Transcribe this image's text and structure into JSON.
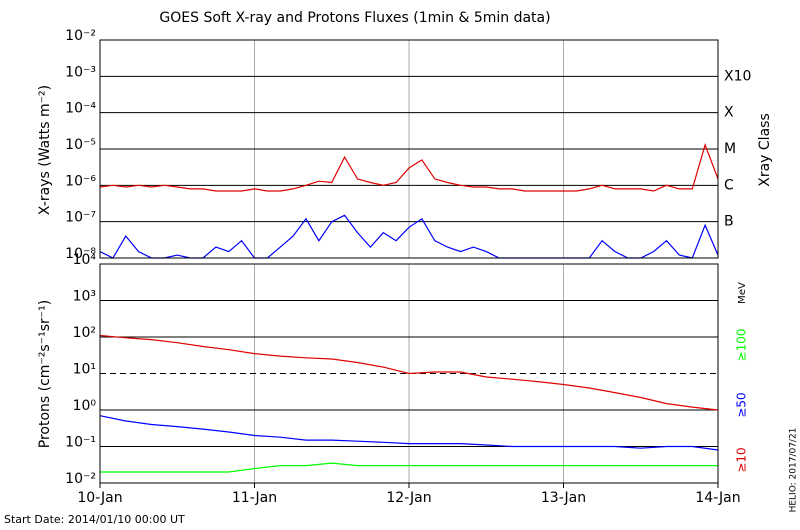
{
  "chart_data": [
    {
      "type": "line",
      "title": "GOES Soft X-ray and Protons Fluxes   (1min & 5min data)",
      "ylabel": "X-rays (Watts m⁻²)",
      "right_label": "Xray Class",
      "log_scale": true,
      "grid": true,
      "xlim": [
        0,
        96
      ],
      "ylim": [
        1e-08,
        0.01
      ],
      "yticks": [
        {
          "value": 1e-08,
          "label": "10⁻⁸"
        },
        {
          "value": 1e-07,
          "label": "10⁻⁷"
        },
        {
          "value": 1e-06,
          "label": "10⁻⁶"
        },
        {
          "value": 1e-05,
          "label": "10⁻⁵"
        },
        {
          "value": 0.0001,
          "label": "10⁻⁴"
        },
        {
          "value": 0.001,
          "label": "10⁻³"
        },
        {
          "value": 0.01,
          "label": "10⁻²"
        }
      ],
      "class_ticks": [
        {
          "value": 1e-07,
          "label": "B"
        },
        {
          "value": 1e-06,
          "label": "C"
        },
        {
          "value": 1e-05,
          "label": "M"
        },
        {
          "value": 0.0001,
          "label": "X"
        },
        {
          "value": 0.001,
          "label": "X10"
        }
      ],
      "x": [
        0,
        2,
        4,
        6,
        8,
        10,
        12,
        14,
        16,
        18,
        20,
        22,
        24,
        26,
        28,
        30,
        32,
        34,
        36,
        38,
        40,
        42,
        44,
        46,
        48,
        50,
        52,
        54,
        56,
        58,
        60,
        62,
        64,
        66,
        68,
        70,
        72,
        74,
        76,
        78,
        80,
        82,
        84,
        86,
        88,
        90,
        92,
        94,
        96
      ],
      "series": [
        {
          "color": "#e00000",
          "values": [
            9e-07,
            1e-06,
            9e-07,
            1e-06,
            9e-07,
            1e-06,
            9e-07,
            8e-07,
            8e-07,
            7e-07,
            7e-07,
            7e-07,
            8e-07,
            7e-07,
            7e-07,
            8e-07,
            1e-06,
            1.3e-06,
            1.2e-06,
            6e-06,
            1.5e-06,
            1.2e-06,
            1e-06,
            1.2e-06,
            3e-06,
            5e-06,
            1.5e-06,
            1.2e-06,
            1e-06,
            9e-07,
            9e-07,
            8e-07,
            8e-07,
            7e-07,
            7e-07,
            7e-07,
            7e-07,
            7e-07,
            8e-07,
            1e-06,
            8e-07,
            8e-07,
            8e-07,
            7e-07,
            1e-06,
            8e-07,
            8e-07,
            1.3e-05,
            1.5e-06
          ]
        },
        {
          "color": "#0000ff",
          "values": [
            1.5e-08,
            1e-08,
            4e-08,
            1.5e-08,
            1e-08,
            1e-08,
            1.2e-08,
            1e-08,
            1e-08,
            2e-08,
            1.5e-08,
            3e-08,
            1e-08,
            1e-08,
            2e-08,
            4e-08,
            1.2e-07,
            3e-08,
            1e-07,
            1.5e-07,
            5e-08,
            2e-08,
            5e-08,
            3e-08,
            7e-08,
            1.2e-07,
            3e-08,
            2e-08,
            1.5e-08,
            2e-08,
            1.5e-08,
            1e-08,
            1e-08,
            1e-08,
            1e-08,
            1e-08,
            1e-08,
            1e-08,
            1e-08,
            3e-08,
            1.5e-08,
            1e-08,
            1e-08,
            1.5e-08,
            3e-08,
            1.2e-08,
            1e-08,
            8e-08,
            1.2e-08
          ]
        }
      ]
    },
    {
      "type": "line",
      "ylabel": "Protons (cm⁻²s⁻¹sr⁻¹)",
      "legend_unit": "MeV",
      "log_scale": true,
      "grid": true,
      "threshold_line": 10,
      "xlim": [
        0,
        96
      ],
      "ylim": [
        0.01,
        10000.0
      ],
      "xticks": [
        {
          "value": 0,
          "label": "10-Jan"
        },
        {
          "value": 24,
          "label": "11-Jan"
        },
        {
          "value": 48,
          "label": "12-Jan"
        },
        {
          "value": 72,
          "label": "13-Jan"
        },
        {
          "value": 96,
          "label": "14-Jan"
        }
      ],
      "yticks": [
        {
          "value": 0.01,
          "label": "10⁻²"
        },
        {
          "value": 0.1,
          "label": "10⁻¹"
        },
        {
          "value": 1,
          "label": "10⁰"
        },
        {
          "value": 10,
          "label": "10¹"
        },
        {
          "value": 100,
          "label": "10²"
        },
        {
          "value": 1000,
          "label": "10³"
        },
        {
          "value": 10000,
          "label": "10⁴"
        }
      ],
      "x": [
        0,
        4,
        8,
        12,
        16,
        20,
        24,
        28,
        32,
        36,
        40,
        44,
        48,
        52,
        56,
        60,
        64,
        68,
        72,
        76,
        80,
        84,
        88,
        92,
        96
      ],
      "series": [
        {
          "name": "≥100",
          "color": "#00ff00",
          "values": [
            0.02,
            0.02,
            0.02,
            0.02,
            0.02,
            0.02,
            0.025,
            0.03,
            0.03,
            0.035,
            0.03,
            0.03,
            0.03,
            0.03,
            0.03,
            0.03,
            0.03,
            0.03,
            0.03,
            0.03,
            0.03,
            0.03,
            0.03,
            0.03,
            0.03
          ]
        },
        {
          "name": "≥50",
          "color": "#0000ff",
          "values": [
            0.7,
            0.5,
            0.4,
            0.35,
            0.3,
            0.25,
            0.2,
            0.18,
            0.15,
            0.15,
            0.14,
            0.13,
            0.12,
            0.12,
            0.12,
            0.11,
            0.1,
            0.1,
            0.1,
            0.1,
            0.1,
            0.09,
            0.1,
            0.1,
            0.08
          ]
        },
        {
          "name": "≥10",
          "color": "#e00000",
          "values": [
            110,
            95,
            85,
            70,
            55,
            45,
            35,
            30,
            27,
            25,
            20,
            15,
            10,
            11,
            11,
            8,
            7,
            6,
            5,
            4,
            3,
            2.2,
            1.5,
            1.2,
            1.0
          ]
        }
      ]
    }
  ],
  "footer": {
    "start_date": "Start Date: 2014/01/10 00:00 UT",
    "created": "HELIO: 2017/07/21"
  }
}
